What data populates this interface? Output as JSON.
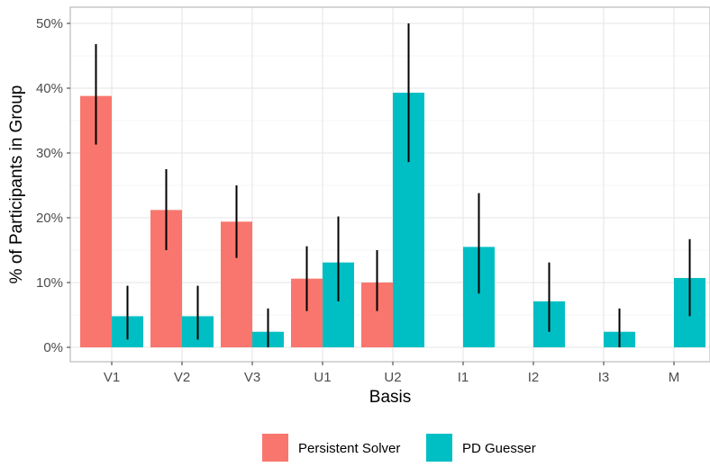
{
  "chart_data": {
    "type": "bar",
    "title": "",
    "xlabel": "Basis",
    "ylabel": "% of Participants in Group",
    "categories": [
      "V1",
      "V2",
      "V3",
      "U1",
      "U2",
      "I1",
      "I2",
      "I3",
      "M"
    ],
    "ylim": [
      0,
      0.5
    ],
    "yticks": [
      0,
      0.1,
      0.2,
      0.3,
      0.4,
      0.5
    ],
    "ytick_labels": [
      "0%",
      "10%",
      "20%",
      "30%",
      "40%",
      "50%"
    ],
    "grid": true,
    "legend_position": "bottom",
    "series": [
      {
        "name": "Persistent Solver",
        "color": "#F8766D",
        "values": [
          0.388,
          0.212,
          0.194,
          0.106,
          0.1,
          null,
          null,
          null,
          null
        ],
        "err_low": [
          0.313,
          0.15,
          0.138,
          0.056,
          0.056,
          null,
          null,
          null,
          null
        ],
        "err_high": [
          0.468,
          0.275,
          0.25,
          0.156,
          0.15,
          null,
          null,
          null,
          null
        ]
      },
      {
        "name": "PD Guesser",
        "color": "#00BFC4",
        "values": [
          0.048,
          0.048,
          0.024,
          0.131,
          0.393,
          0.155,
          0.071,
          0.024,
          0.107
        ],
        "err_low": [
          0.012,
          0.012,
          0.0,
          0.071,
          0.286,
          0.083,
          0.024,
          0.0,
          0.048
        ],
        "err_high": [
          0.095,
          0.095,
          0.06,
          0.202,
          0.5,
          0.238,
          0.131,
          0.06,
          0.167
        ]
      }
    ]
  }
}
